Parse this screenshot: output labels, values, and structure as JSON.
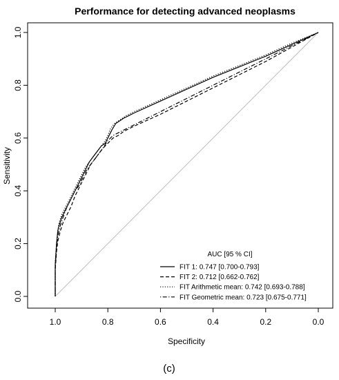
{
  "chart_data": {
    "type": "line",
    "title": "Performance for detecting advanced neoplasms",
    "xlabel": "Specificity",
    "ylabel": "Sensitivity",
    "xlim": [
      1.0,
      0.0
    ],
    "ylim": [
      0.0,
      1.0
    ],
    "x_reversed": true,
    "xticks": [
      "1.0",
      "0.8",
      "0.6",
      "0.4",
      "0.2",
      "0.0"
    ],
    "yticks": [
      "0.0",
      "0.2",
      "0.4",
      "0.6",
      "0.8",
      "1.0"
    ],
    "grid": false,
    "reference_line": {
      "from": [
        1.0,
        0.0
      ],
      "to": [
        0.0,
        1.0
      ],
      "color": "#bdbdbd"
    },
    "legend": {
      "title": "AUC [95 % CI]",
      "position": "bottom-right",
      "entries": [
        "FIT 1: 0.747 [0.700-0.793]",
        "FIT 2: 0.712 [0.662-0.762]",
        "FIT Arithmetic mean: 0.742 [0.693-0.788]",
        "FIT Geometric mean: 0.723 [0.675-0.771]"
      ]
    },
    "series": [
      {
        "name": "FIT 1",
        "line_style": "solid",
        "x": [
          1.0,
          1.0,
          0.995,
          0.99,
          0.985,
          0.975,
          0.96,
          0.945,
          0.93,
          0.915,
          0.9,
          0.885,
          0.87,
          0.855,
          0.84,
          0.825,
          0.81,
          0.8,
          0.785,
          0.77,
          0.755,
          0.74,
          0.72,
          0.7,
          0.6,
          0.5,
          0.4,
          0.3,
          0.2,
          0.1,
          0.0
        ],
        "y": [
          0.0,
          0.12,
          0.2,
          0.25,
          0.27,
          0.3,
          0.33,
          0.36,
          0.39,
          0.42,
          0.45,
          0.48,
          0.51,
          0.53,
          0.55,
          0.57,
          0.58,
          0.6,
          0.63,
          0.655,
          0.665,
          0.675,
          0.685,
          0.695,
          0.74,
          0.785,
          0.83,
          0.87,
          0.91,
          0.955,
          1.0
        ]
      },
      {
        "name": "FIT 2",
        "line_style": "dashed",
        "x": [
          1.0,
          1.0,
          0.995,
          0.99,
          0.98,
          0.97,
          0.955,
          0.94,
          0.925,
          0.91,
          0.895,
          0.88,
          0.865,
          0.85,
          0.835,
          0.82,
          0.8,
          0.78,
          0.76,
          0.74,
          0.72,
          0.7,
          0.6,
          0.5,
          0.4,
          0.3,
          0.2,
          0.1,
          0.0
        ],
        "y": [
          0.0,
          0.1,
          0.17,
          0.21,
          0.25,
          0.28,
          0.31,
          0.34,
          0.38,
          0.41,
          0.44,
          0.47,
          0.5,
          0.52,
          0.54,
          0.56,
          0.58,
          0.6,
          0.61,
          0.625,
          0.635,
          0.645,
          0.69,
          0.74,
          0.79,
          0.84,
          0.89,
          0.945,
          1.0
        ]
      },
      {
        "name": "FIT Arithmetic mean",
        "line_style": "dotted",
        "x": [
          1.0,
          1.0,
          0.995,
          0.99,
          0.985,
          0.975,
          0.96,
          0.945,
          0.93,
          0.915,
          0.9,
          0.885,
          0.87,
          0.855,
          0.84,
          0.825,
          0.81,
          0.8,
          0.79,
          0.775,
          0.76,
          0.745,
          0.73,
          0.7,
          0.6,
          0.5,
          0.4,
          0.3,
          0.2,
          0.1,
          0.0
        ],
        "y": [
          0.0,
          0.13,
          0.2,
          0.25,
          0.28,
          0.31,
          0.34,
          0.37,
          0.4,
          0.43,
          0.46,
          0.49,
          0.51,
          0.53,
          0.55,
          0.57,
          0.59,
          0.61,
          0.635,
          0.655,
          0.665,
          0.675,
          0.685,
          0.7,
          0.745,
          0.79,
          0.835,
          0.875,
          0.915,
          0.96,
          1.0
        ]
      },
      {
        "name": "FIT Geometric mean",
        "line_style": "dotdash",
        "x": [
          1.0,
          1.0,
          0.995,
          0.99,
          0.98,
          0.97,
          0.955,
          0.94,
          0.925,
          0.91,
          0.895,
          0.88,
          0.865,
          0.85,
          0.835,
          0.82,
          0.8,
          0.78,
          0.76,
          0.74,
          0.72,
          0.7,
          0.6,
          0.5,
          0.4,
          0.3,
          0.2,
          0.1,
          0.0
        ],
        "y": [
          0.0,
          0.11,
          0.19,
          0.23,
          0.27,
          0.3,
          0.34,
          0.37,
          0.4,
          0.42,
          0.45,
          0.48,
          0.5,
          0.52,
          0.54,
          0.56,
          0.59,
          0.61,
          0.62,
          0.63,
          0.64,
          0.65,
          0.7,
          0.75,
          0.8,
          0.85,
          0.9,
          0.95,
          1.0
        ]
      }
    ]
  },
  "caption": "(c)"
}
